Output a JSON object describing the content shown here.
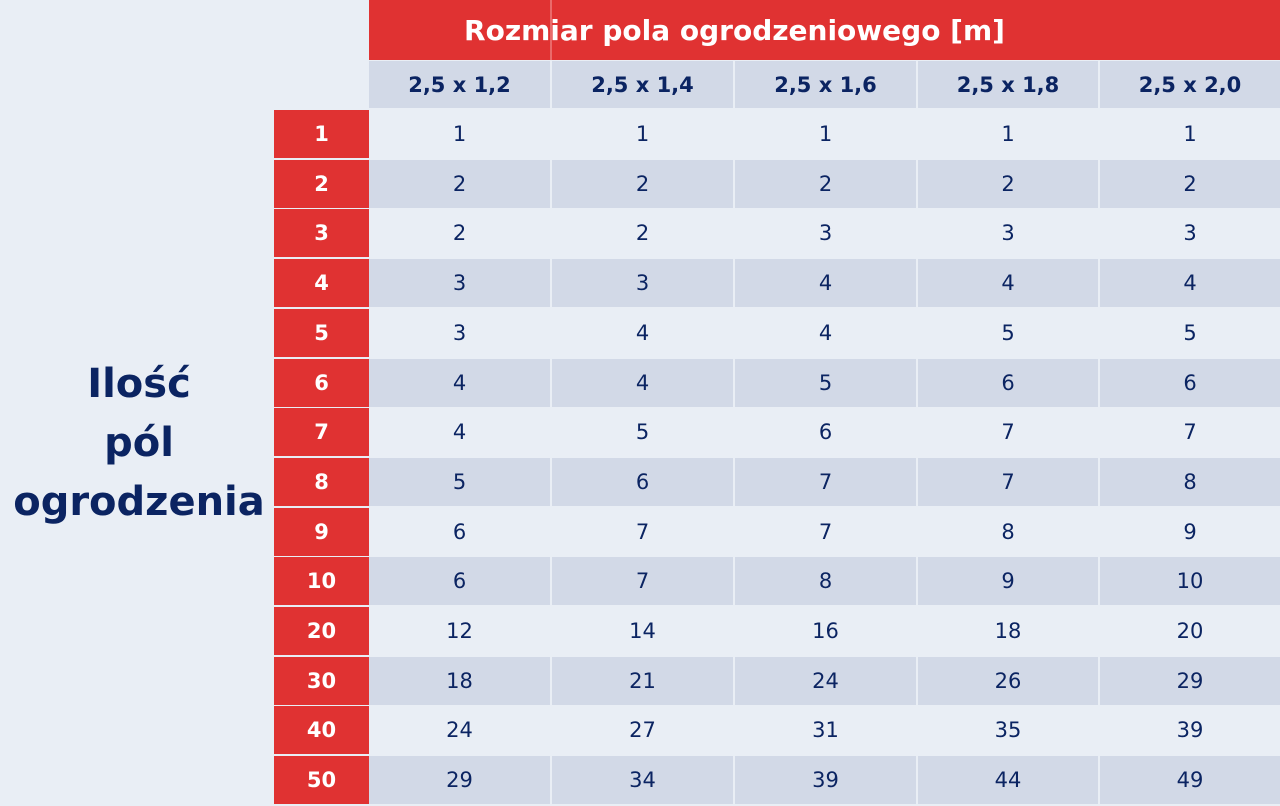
{
  "side_label": [
    "Ilość",
    "pól",
    "ogrodzenia"
  ],
  "title": "Rozmiar pola ogrodzeniowego [m]",
  "columns": [
    "2,5 x 1,2",
    "2,5 x 1,4",
    "2,5 x 1,6",
    "2,5 x 1,8",
    "2,5 x 2,0"
  ],
  "rows": [
    {
      "label": "1",
      "values": [
        "1",
        "1",
        "1",
        "1",
        "1"
      ]
    },
    {
      "label": "2",
      "values": [
        "2",
        "2",
        "2",
        "2",
        "2"
      ]
    },
    {
      "label": "3",
      "values": [
        "2",
        "2",
        "3",
        "3",
        "3"
      ]
    },
    {
      "label": "4",
      "values": [
        "3",
        "3",
        "4",
        "4",
        "4"
      ]
    },
    {
      "label": "5",
      "values": [
        "3",
        "4",
        "4",
        "5",
        "5"
      ]
    },
    {
      "label": "6",
      "values": [
        "4",
        "4",
        "5",
        "6",
        "6"
      ]
    },
    {
      "label": "7",
      "values": [
        "4",
        "5",
        "6",
        "7",
        "7"
      ]
    },
    {
      "label": "8",
      "values": [
        "5",
        "6",
        "7",
        "7",
        "8"
      ]
    },
    {
      "label": "9",
      "values": [
        "6",
        "7",
        "7",
        "8",
        "9"
      ]
    },
    {
      "label": "10",
      "values": [
        "6",
        "7",
        "8",
        "9",
        "10"
      ]
    },
    {
      "label": "20",
      "values": [
        "12",
        "14",
        "16",
        "18",
        "20"
      ]
    },
    {
      "label": "30",
      "values": [
        "18",
        "21",
        "24",
        "26",
        "29"
      ]
    },
    {
      "label": "40",
      "values": [
        "24",
        "27",
        "31",
        "35",
        "39"
      ]
    },
    {
      "label": "50",
      "values": [
        "29",
        "34",
        "39",
        "44",
        "49"
      ]
    }
  ],
  "colors": {
    "red": "#e03232",
    "navy": "#0b2462",
    "stripe_light": "#e9eef5",
    "stripe_dark": "#d2d9e7"
  }
}
